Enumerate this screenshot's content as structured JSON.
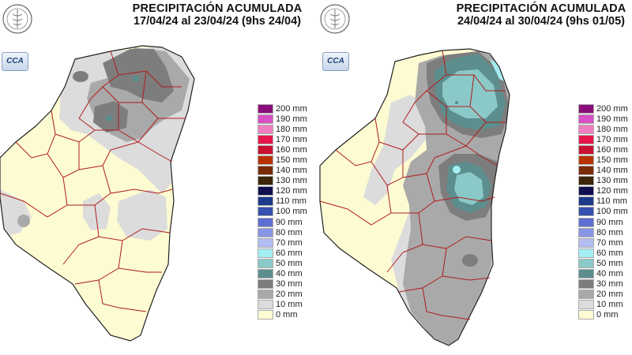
{
  "panels": [
    {
      "title_line1": "PRECIPITACIÓN ACUMULADA",
      "title_line2": "17/04/24 al 23/04/24 (9hs 24/04)",
      "seal_text": "BOLSA DE CEREALES DE ENTRE RÍOS",
      "logo_text": "CCA"
    },
    {
      "title_line1": "PRECIPITACIÓN ACUMULADA",
      "title_line2": "24/04/24 al 30/04/24 (9hs 01/05)",
      "seal_text": "BOLSA DE CEREALES DE ENTRE RÍOS",
      "logo_text": "CCA"
    }
  ],
  "legend": [
    {
      "label": "200 mm",
      "color": "#8b0f7a"
    },
    {
      "label": "190 mm",
      "color": "#d94fc4"
    },
    {
      "label": "180 mm",
      "color": "#ef7fc0"
    },
    {
      "label": "170 mm",
      "color": "#e8154b"
    },
    {
      "label": "160 mm",
      "color": "#c81030"
    },
    {
      "label": "150 mm",
      "color": "#b83200"
    },
    {
      "label": "140 mm",
      "color": "#7a2a05"
    },
    {
      "label": "130 mm",
      "color": "#3c2508"
    },
    {
      "label": "120 mm",
      "color": "#101050"
    },
    {
      "label": "110 mm",
      "color": "#1b3a8c"
    },
    {
      "label": "100 mm",
      "color": "#3550b0"
    },
    {
      "label": "90 mm",
      "color": "#5e6fd2"
    },
    {
      "label": "80 mm",
      "color": "#8a95e6"
    },
    {
      "label": "70 mm",
      "color": "#b4bdf2"
    },
    {
      "label": "60 mm",
      "color": "#a3eef2"
    },
    {
      "label": "50 mm",
      "color": "#8bc8c8"
    },
    {
      "label": "40 mm",
      "color": "#5c8e8e"
    },
    {
      "label": "30 mm",
      "color": "#7d7d7d"
    },
    {
      "label": "20 mm",
      "color": "#a9a9a9"
    },
    {
      "label": "10 mm",
      "color": "#dcdcdc"
    },
    {
      "label": "0 mm",
      "color": "#fdfbd2"
    }
  ],
  "map_colors": {
    "0mm": "#fdfbd2",
    "10mm": "#dcdcdc",
    "20mm": "#a9a9a9",
    "30mm": "#7d7d7d",
    "40mm": "#5c8e8e",
    "50mm": "#8bc8c8",
    "60mm": "#a3eef2",
    "border": "#b01c1c"
  }
}
